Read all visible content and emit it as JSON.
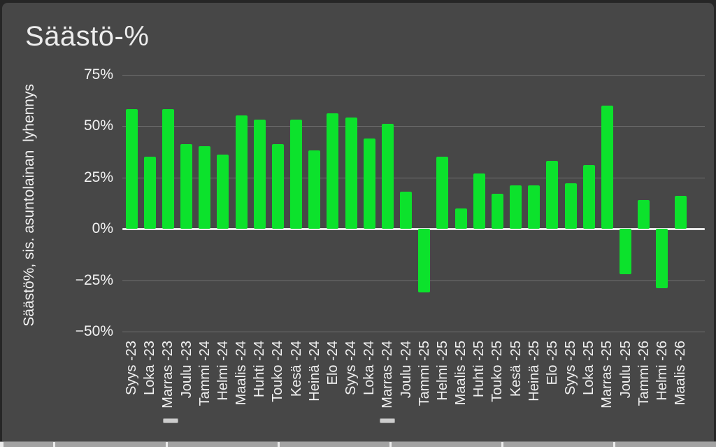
{
  "chart": {
    "title": "Säästö-%",
    "y_axis_title": "Säästö%, sis. asuntolainan  lyhennys",
    "colors": {
      "panel_background": "#474747",
      "outer_border": "#262626",
      "bar": "#0ce22c",
      "grid_line": "#6f6f6f",
      "zero_line": "#e8e8e8",
      "text": "#f2f2f2",
      "bottom_strip": "#a3a3a3"
    }
  },
  "chart_data": {
    "type": "bar",
    "title": "Säästö-%",
    "xlabel": "",
    "ylabel": "Säästö%, sis. asuntolainan  lyhennys",
    "categories": [
      "Syys -23",
      "Loka -23",
      "Marras -23",
      "Joulu -23",
      "Tammi -24",
      "Helmi -24",
      "Maalis -24",
      "Huhti -24",
      "Touko -24",
      "Kesä -24",
      "Heinä -24",
      "Elo -24",
      "Syys -24",
      "Loka -24",
      "Marras -24",
      "Joulu -24",
      "Tammi -25",
      "Helmi -25",
      "Maalis -25",
      "Huhti -25",
      "Touko -25",
      "Kesä -25",
      "Heinä -25",
      "Elo -25",
      "Syys -25",
      "Loka -25",
      "Marras -25",
      "Joulu -25",
      "Tammi -26",
      "Helmi -26",
      "Maalis -26"
    ],
    "values": [
      58,
      35,
      58,
      41,
      40,
      36,
      55,
      53,
      41,
      53,
      38,
      56,
      54,
      44,
      51,
      18,
      -31,
      35,
      10,
      27,
      17,
      21,
      21,
      33,
      22,
      31,
      60,
      -22,
      14,
      -29,
      16
    ],
    "ylim": [
      -50,
      75
    ],
    "y_tick_values": [
      75,
      50,
      25,
      0,
      -25,
      -50
    ],
    "y_tick_labels": [
      "75%",
      "50%",
      "25%",
      "0%",
      "−25%",
      "−50%"
    ],
    "grid": true,
    "legend_position": "none",
    "bar_color": "#0ce22c"
  }
}
